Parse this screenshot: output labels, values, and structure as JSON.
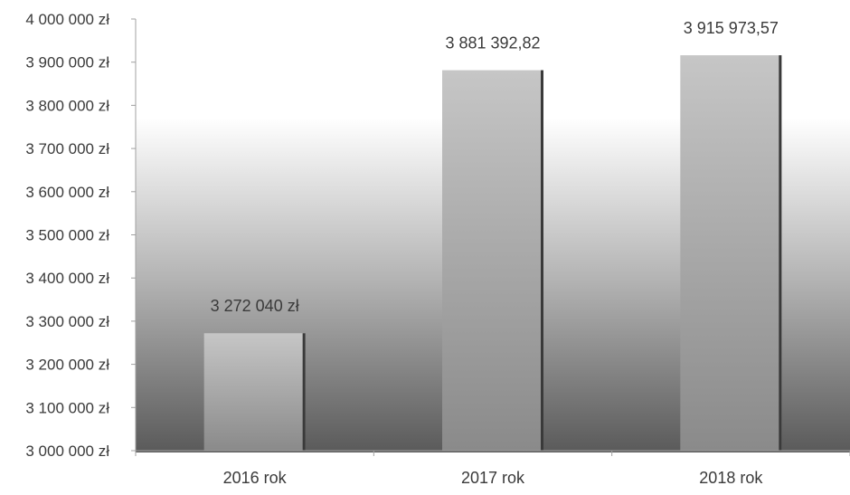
{
  "chart_data": {
    "type": "bar",
    "title": "",
    "xlabel": "",
    "ylabel": "",
    "categories": [
      "2016 rok",
      "2017 rok",
      "2018 rok"
    ],
    "values": [
      3272040,
      3881392.82,
      3915973.57
    ],
    "data_labels": [
      "3 272 040 zł",
      "3 881 392,82",
      "3 915 973,57"
    ],
    "ylim": [
      3000000,
      4000000
    ],
    "yticks": [
      3000000,
      3100000,
      3200000,
      3300000,
      3400000,
      3500000,
      3600000,
      3700000,
      3800000,
      3900000,
      4000000
    ],
    "ytick_labels": [
      "3 000 000 zł",
      "3 100 000 zł",
      "3 200 000 zł",
      "3 300 000 zł",
      "3 400 000 zł",
      "3 500 000 zł",
      "3 600 000 zł",
      "3 700 000 zł",
      "3 800 000 zł",
      "3 900 000 zł",
      "4 000 000 zł"
    ],
    "grid": false,
    "legend": "none",
    "colors": {
      "bar_light": "#c2c2c2",
      "bar_dark": "#8a8a8a",
      "bar_edge": "#3a3a3a",
      "bg_dark": "#5a5a5a",
      "axis": "#a0a0a0",
      "text": "#3a3a3a"
    }
  }
}
